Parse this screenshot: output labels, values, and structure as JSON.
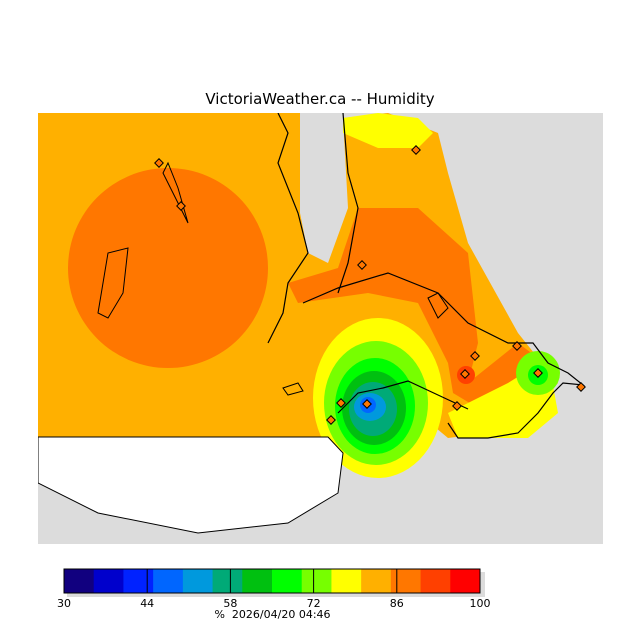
{
  "title": "VictoriaWeather.ca -- Humidity",
  "colors": {
    "background_land": "#dcdcdc",
    "uncovered_land": "#ffffff",
    "scale": [
      "#11007f",
      "#0000cc",
      "#0022ff",
      "#0066ff",
      "#0099dd",
      "#00aa77",
      "#00c010",
      "#00ff00",
      "#77ff00",
      "#ffff00",
      "#ffb000",
      "#ff7700",
      "#ff4000",
      "#ff0000"
    ]
  },
  "colorbar": {
    "min": 30,
    "max": 100,
    "ticks": [
      "30",
      "44",
      "58",
      "72",
      "86",
      "100"
    ],
    "unit": "%",
    "timestamp": "2026/04/20 04:46"
  }
}
